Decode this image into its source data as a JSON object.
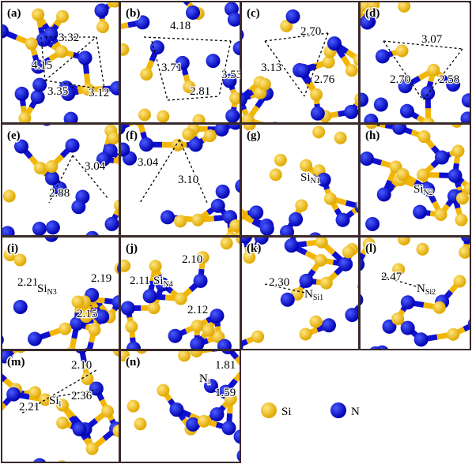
{
  "panels": [
    {
      "label": "(a)",
      "distances": [
        "3.32",
        "4.15",
        "3.35",
        "3.12"
      ]
    },
    {
      "label": "(b)",
      "distances": [
        "4.18",
        "3.71",
        "3.53",
        "2.81"
      ]
    },
    {
      "label": "(c)",
      "distances": [
        "2.70",
        "3.13",
        "2.76"
      ]
    },
    {
      "label": "(d)",
      "distances": [
        "3.07",
        "2.70",
        "2.58"
      ]
    },
    {
      "label": "(e)",
      "distances": [
        "3.04",
        "2.88"
      ]
    },
    {
      "label": "(f)",
      "distances": [
        "3.04",
        "3.10"
      ]
    },
    {
      "label": "(g)",
      "distances": [],
      "site": {
        "main": "Si",
        "sub": "N1"
      }
    },
    {
      "label": "(h)",
      "distances": [],
      "site": {
        "main": "Si",
        "sub": "N2"
      }
    },
    {
      "label": "(i)",
      "distances": [
        "2.21",
        "2.19",
        "2.15"
      ],
      "site": {
        "main": "Si",
        "sub": "N3"
      }
    },
    {
      "label": "(j)",
      "distances": [
        "2.10",
        "2.11",
        "2.12"
      ],
      "site": {
        "main": "Si",
        "sub": "N4"
      }
    },
    {
      "label": "(k)",
      "distances": [
        "2.30"
      ],
      "site": {
        "main": "N",
        "sub": "Si1"
      }
    },
    {
      "label": "(l)",
      "distances": [
        "2.47"
      ],
      "site": {
        "main": "N",
        "sub": "Si2"
      }
    },
    {
      "label": "(m)",
      "distances": [
        "2.10",
        "2.36",
        "2.21"
      ],
      "site": {
        "main": "Si",
        "sub": "i"
      }
    },
    {
      "label": "(n)",
      "distances": [
        "1.81",
        "1.59"
      ],
      "site": {
        "main": "N",
        "sub": "i"
      }
    }
  ],
  "legend": [
    {
      "label": "Si"
    },
    {
      "label": "N"
    }
  ]
}
